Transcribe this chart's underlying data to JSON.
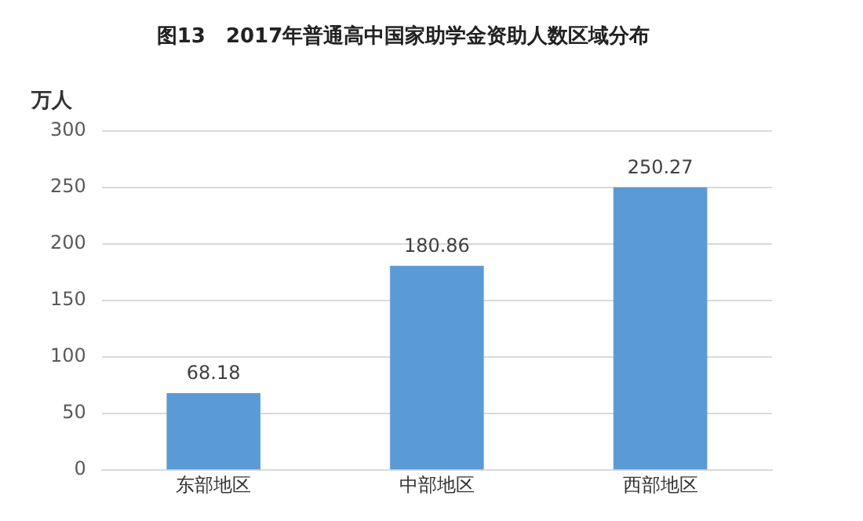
{
  "chart_data": {
    "type": "bar",
    "title": "图13　2017年普通高中国家助学金资助人数区域分布",
    "ylabel": "万人",
    "categories": [
      "东部地区",
      "中部地区",
      "西部地区"
    ],
    "values": [
      68.18,
      180.86,
      250.27
    ],
    "color": "#5b9bd5",
    "ylim": [
      0,
      300
    ],
    "yticks": [
      0,
      50,
      100,
      150,
      200,
      250,
      300
    ],
    "grid": "y",
    "legend": false,
    "data_labels": true
  }
}
